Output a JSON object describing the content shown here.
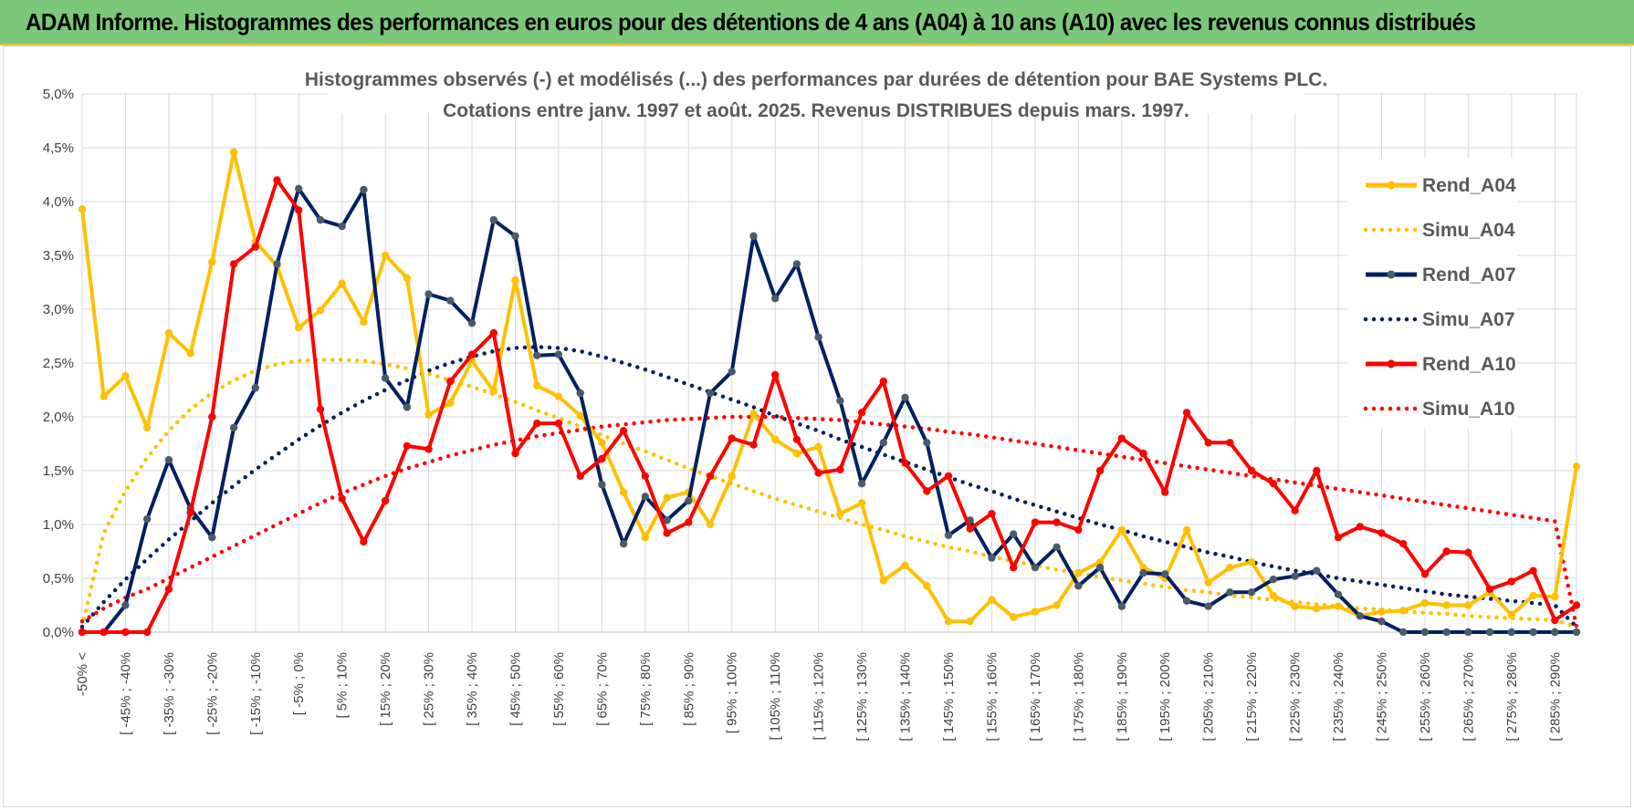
{
  "banner": "ADAM Informe. Histogrammes des performances en euros pour des détentions de 4 ans (A04) à 10 ans (A10) avec les revenus connus distribués",
  "chart_data": {
    "type": "line",
    "title": "Histogrammes observés (-) et modélisés (...) des performances par durées de détention pour BAE Systems PLC.",
    "subtitle": "Cotations entre janv. 1997 et août. 2025. Revenus DISTRIBUES depuis mars. 1997.",
    "xlabel": "",
    "ylabel": "",
    "ylim": [
      0,
      5
    ],
    "yticks": [
      "0,0%",
      "0,5%",
      "1,0%",
      "1,5%",
      "2,0%",
      "2,5%",
      "3,0%",
      "3,5%",
      "4,0%",
      "4,5%",
      "5,0%"
    ],
    "grid": true,
    "legend_position": "right",
    "x_tick_labels": [
      "-50% <",
      "[ -45% ; -40%",
      "[ -35% ; -30%",
      "[ -25% ; -20%",
      "[ -15% ; -10%",
      "[ -5% ; 0%",
      "[ 5% ; 10%",
      "[ 15% ; 20%",
      "[ 25% ; 30%",
      "[ 35% ; 40%",
      "[ 45% ; 50%",
      "[ 55% ; 60%",
      "[ 65% ; 70%",
      "[ 75% ; 80%",
      "[ 85% ; 90%",
      "[ 95% ; 100%",
      "[ 105% ; 110%",
      "[ 115% ; 120%",
      "[ 125% ; 130%",
      "[ 135% ; 140%",
      "[ 145% ; 150%",
      "[ 155% ; 160%",
      "[ 165% ; 170%",
      "[ 175% ; 180%",
      "[ 185% ; 190%",
      "[ 195% ; 200%",
      "[ 205% ; 210%",
      "[ 215% ; 220%",
      "[ 225% ; 230%",
      "[ 235% ; 240%",
      "[ 245% ; 250%",
      "[ 255% ; 260%",
      "[ 265% ; 270%",
      "[ 275% ; 280%",
      "[ 285% ; 290%"
    ],
    "series": [
      {
        "name": "Rend_A04",
        "style": "solid",
        "color": "#ffc000",
        "values": [
          3.93,
          2.19,
          2.38,
          1.9,
          2.78,
          2.59,
          3.44,
          4.46,
          3.63,
          3.4,
          2.83,
          2.99,
          3.24,
          2.88,
          3.5,
          3.29,
          2.02,
          2.13,
          2.52,
          2.24,
          3.27,
          2.29,
          2.19,
          2.01,
          1.76,
          1.3,
          0.88,
          1.25,
          1.3,
          1.0,
          1.45,
          2.03,
          1.79,
          1.66,
          1.72,
          1.1,
          1.2,
          0.48,
          0.62,
          0.43,
          0.1,
          0.1,
          0.3,
          0.14,
          0.19,
          0.25,
          0.55,
          0.65,
          0.95,
          0.6,
          0.5,
          0.95,
          0.46,
          0.6,
          0.65,
          0.34,
          0.24,
          0.22,
          0.24,
          0.15,
          0.19,
          0.2,
          0.27,
          0.25,
          0.25,
          0.37,
          0.16,
          0.34,
          0.33,
          1.54
        ]
      },
      {
        "name": "Simu_A04",
        "style": "dotted",
        "color": "#ffc000",
        "values": [
          0.05,
          0.92,
          1.31,
          1.62,
          1.87,
          2.07,
          2.22,
          2.34,
          2.43,
          2.49,
          2.52,
          2.53,
          2.53,
          2.52,
          2.49,
          2.45,
          2.4,
          2.34,
          2.28,
          2.21,
          2.14,
          2.06,
          1.99,
          1.91,
          1.83,
          1.75,
          1.68,
          1.6,
          1.52,
          1.45,
          1.38,
          1.31,
          1.24,
          1.18,
          1.12,
          1.06,
          1.0,
          0.95,
          0.89,
          0.84,
          0.79,
          0.75,
          0.7,
          0.66,
          0.62,
          0.58,
          0.55,
          0.51,
          0.48,
          0.45,
          0.42,
          0.39,
          0.37,
          0.34,
          0.32,
          0.3,
          0.28,
          0.26,
          0.24,
          0.22,
          0.21,
          0.19,
          0.18,
          0.17,
          0.15,
          0.14,
          0.13,
          0.12,
          0.11,
          0.05
        ]
      },
      {
        "name": "Rend_A07",
        "style": "solid",
        "color": "#002060",
        "values": [
          0.0,
          0.0,
          0.25,
          1.05,
          1.6,
          1.15,
          0.88,
          1.9,
          2.27,
          3.42,
          4.12,
          3.83,
          3.77,
          4.11,
          2.36,
          2.09,
          3.14,
          3.08,
          2.87,
          3.83,
          3.68,
          2.57,
          2.58,
          2.22,
          1.37,
          0.82,
          1.26,
          1.04,
          1.22,
          2.22,
          2.42,
          3.68,
          3.1,
          3.42,
          2.74,
          2.15,
          1.38,
          1.76,
          2.18,
          1.76,
          0.9,
          1.04,
          0.69,
          0.91,
          0.6,
          0.79,
          0.43,
          0.6,
          0.24,
          0.55,
          0.54,
          0.29,
          0.24,
          0.37,
          0.37,
          0.49,
          0.52,
          0.57,
          0.35,
          0.15,
          0.1,
          0.0,
          0.0,
          0.0,
          0.0,
          0.0,
          0.0,
          0.0,
          0.0,
          0.0
        ]
      },
      {
        "name": "Simu_A07",
        "style": "dotted",
        "color": "#002060",
        "values": [
          0.05,
          0.28,
          0.49,
          0.68,
          0.86,
          1.03,
          1.2,
          1.36,
          1.51,
          1.65,
          1.79,
          1.92,
          2.04,
          2.15,
          2.25,
          2.34,
          2.43,
          2.5,
          2.56,
          2.61,
          2.64,
          2.65,
          2.64,
          2.61,
          2.56,
          2.5,
          2.44,
          2.37,
          2.3,
          2.23,
          2.16,
          2.09,
          2.01,
          1.94,
          1.87,
          1.79,
          1.72,
          1.65,
          1.58,
          1.51,
          1.44,
          1.37,
          1.31,
          1.24,
          1.18,
          1.12,
          1.06,
          1.0,
          0.95,
          0.89,
          0.84,
          0.79,
          0.74,
          0.7,
          0.65,
          0.61,
          0.57,
          0.54,
          0.5,
          0.47,
          0.44,
          0.41,
          0.38,
          0.35,
          0.33,
          0.31,
          0.29,
          0.27,
          0.25,
          0.05
        ]
      },
      {
        "name": "Rend_A10",
        "style": "solid",
        "color": "#ff0000",
        "values": [
          0.0,
          0.0,
          0.0,
          0.0,
          0.4,
          1.11,
          2.0,
          3.42,
          3.58,
          4.2,
          3.92,
          2.07,
          1.24,
          0.84,
          1.22,
          1.73,
          1.7,
          2.33,
          2.58,
          2.78,
          1.66,
          1.94,
          1.94,
          1.45,
          1.61,
          1.87,
          1.45,
          0.92,
          1.02,
          1.45,
          1.8,
          1.74,
          2.39,
          1.79,
          1.48,
          1.51,
          2.04,
          2.33,
          1.57,
          1.31,
          1.45,
          0.96,
          1.1,
          0.6,
          1.02,
          1.02,
          0.95,
          1.5,
          1.8,
          1.66,
          1.3,
          2.04,
          1.76,
          1.76,
          1.5,
          1.38,
          1.13,
          1.5,
          0.88,
          0.98,
          0.92,
          0.82,
          0.54,
          0.75,
          0.74,
          0.4,
          0.47,
          0.57,
          0.11,
          0.25
        ]
      },
      {
        "name": "Simu_A10",
        "style": "dotted",
        "color": "#ff0000",
        "values": [
          0.1,
          0.22,
          0.32,
          0.4,
          0.5,
          0.6,
          0.7,
          0.8,
          0.9,
          1.0,
          1.1,
          1.2,
          1.29,
          1.37,
          1.45,
          1.52,
          1.58,
          1.64,
          1.69,
          1.74,
          1.78,
          1.82,
          1.85,
          1.88,
          1.91,
          1.93,
          1.95,
          1.97,
          1.98,
          1.99,
          2.0,
          2.0,
          2.0,
          1.99,
          1.98,
          1.97,
          1.95,
          1.93,
          1.91,
          1.89,
          1.86,
          1.84,
          1.81,
          1.78,
          1.75,
          1.72,
          1.69,
          1.66,
          1.63,
          1.6,
          1.57,
          1.54,
          1.51,
          1.48,
          1.45,
          1.42,
          1.39,
          1.36,
          1.33,
          1.3,
          1.27,
          1.24,
          1.21,
          1.18,
          1.15,
          1.12,
          1.09,
          1.06,
          1.03,
          0.05
        ]
      }
    ]
  }
}
